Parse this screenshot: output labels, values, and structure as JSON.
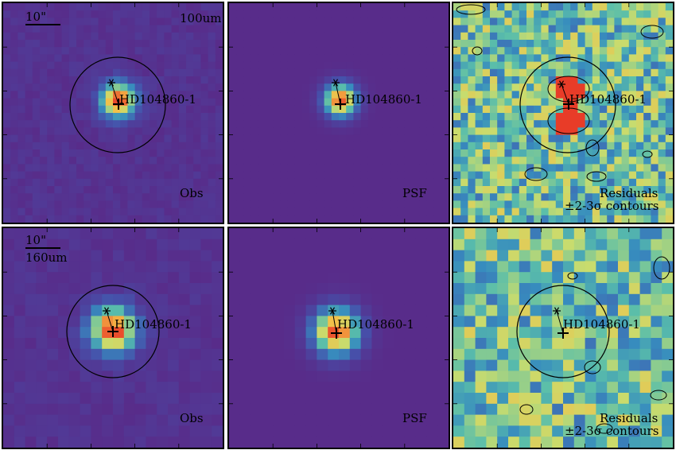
{
  "scale_bar_label": "10\"",
  "target_label": "HD104860-1",
  "rows": [
    {
      "band": "100um",
      "panels": [
        {
          "kind": "obs",
          "label": "Obs"
        },
        {
          "kind": "psf",
          "label": "PSF"
        },
        {
          "kind": "residual",
          "label_line1": "Residuals",
          "label_line2": "±2-3σ contours"
        }
      ]
    },
    {
      "band": "160um",
      "panels": [
        {
          "kind": "obs",
          "label": "Obs"
        },
        {
          "kind": "psf",
          "label": "PSF"
        },
        {
          "kind": "residual",
          "label_line1": "Residuals",
          "label_line2": "±2-3σ contours"
        }
      ]
    }
  ],
  "colors": {
    "background_obs": "#5a2f8a",
    "background_psf": "#5a2f8a",
    "peak": "#e8452a",
    "mid": "#f3c547",
    "residual_cool": "#3b6fb4",
    "residual_warm": "#c8dc6b",
    "residual_hot": "#e81f1f"
  }
}
